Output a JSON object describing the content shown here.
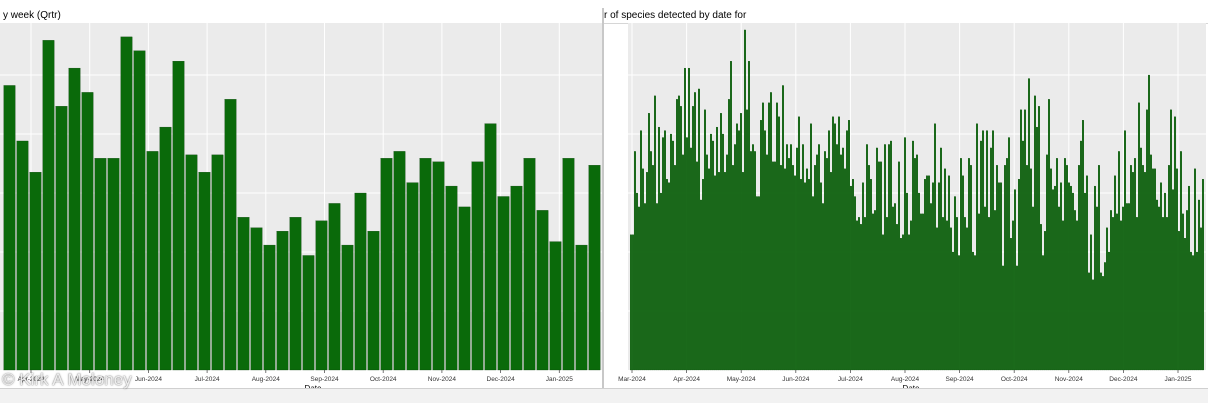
{
  "watermark": "© Kirk A Moloney",
  "colors": {
    "bar": "#0a6a0a",
    "bar_edge": "#063f06",
    "plot_bg": "#ebebeb",
    "grid": "#ffffff"
  },
  "chart_data": [
    {
      "type": "bar",
      "title": "y week (Qrtr)",
      "xlabel": "Date",
      "ylabel": "",
      "grid": true,
      "x_tick_labels": [
        "Apr-2024",
        "May-2024",
        "Jun-2024",
        "Jul-2024",
        "Aug-2024",
        "Sep-2024",
        "Oct-2024",
        "Nov-2024",
        "Dec-2024",
        "Jan-2025"
      ],
      "ylim": [
        0,
        100
      ],
      "values": [
        82,
        66,
        57,
        95,
        76,
        87,
        80,
        61,
        61,
        96,
        92,
        63,
        70,
        89,
        62,
        57,
        62,
        78,
        44,
        41,
        36,
        40,
        44,
        33,
        43,
        48,
        36,
        51,
        40,
        61,
        63,
        54,
        61,
        60,
        53,
        47,
        60,
        71,
        50,
        53,
        61,
        46,
        37,
        61,
        36,
        59
      ]
    },
    {
      "type": "bar",
      "title": "r of species detected by date for",
      "xlabel": "Date",
      "ylabel": "",
      "grid": true,
      "x_tick_labels": [
        "Mar-2024",
        "Apr-2024",
        "May-2024",
        "Jun-2024",
        "Jul-2024",
        "Aug-2024",
        "Sep-2024",
        "Oct-2024",
        "Nov-2024",
        "Dec-2024",
        "Jan-2025"
      ],
      "ylim": [
        0,
        100
      ],
      "values": [
        39,
        39,
        63,
        51,
        47,
        69,
        58,
        48,
        57,
        74,
        63,
        59,
        79,
        48,
        70,
        51,
        67,
        69,
        55,
        54,
        68,
        66,
        59,
        78,
        79,
        76,
        62,
        87,
        67,
        87,
        64,
        76,
        80,
        60,
        81,
        49,
        55,
        75,
        62,
        58,
        68,
        66,
        56,
        70,
        57,
        74,
        68,
        57,
        62,
        78,
        89,
        59,
        65,
        71,
        69,
        74,
        57,
        98,
        75,
        89,
        63,
        65,
        63,
        50,
        50,
        72,
        77,
        69,
        62,
        77,
        80,
        60,
        60,
        77,
        73,
        59,
        82,
        58,
        65,
        61,
        65,
        59,
        56,
        64,
        73,
        55,
        65,
        54,
        58,
        55,
        71,
        50,
        59,
        62,
        65,
        54,
        48,
        63,
        61,
        69,
        57,
        73,
        71,
        65,
        73,
        62,
        64,
        58,
        69,
        72,
        53,
        55,
        50,
        43,
        44,
        42,
        54,
        44,
        65,
        59,
        55,
        45,
        46,
        64,
        60,
        60,
        39,
        65,
        44,
        65,
        66,
        47,
        48,
        42,
        60,
        38,
        39,
        67,
        51,
        39,
        43,
        66,
        61,
        62,
        51,
        45,
        45,
        55,
        56,
        56,
        48,
        54,
        71,
        41,
        54,
        64,
        44,
        58,
        43,
        56,
        41,
        34,
        50,
        44,
        33,
        61,
        56,
        44,
        41,
        61,
        59,
        34,
        33,
        71,
        45,
        66,
        69,
        47,
        69,
        44,
        64,
        69,
        46,
        59,
        54,
        54,
        30,
        59,
        61,
        67,
        38,
        43,
        52,
        30,
        55,
        75,
        66,
        75,
        59,
        84,
        58,
        47,
        79,
        70,
        76,
        42,
        33,
        40,
        62,
        78,
        58,
        52,
        53,
        61,
        47,
        54,
        43,
        61,
        59,
        54,
        53,
        51,
        46,
        43,
        59,
        66,
        72,
        51,
        56,
        28,
        39,
        26,
        53,
        47,
        59,
        28,
        27,
        31,
        41,
        34,
        46,
        44,
        56,
        45,
        63,
        43,
        47,
        69,
        48,
        48,
        59,
        57,
        61,
        44,
        77,
        64,
        59,
        57,
        75,
        85,
        62,
        58,
        58,
        49,
        47,
        54,
        44,
        51,
        44,
        59,
        75,
        52,
        73,
        58,
        40,
        63,
        45,
        38,
        46,
        53,
        34,
        33,
        58,
        34,
        49,
        41,
        55
      ]
    }
  ]
}
